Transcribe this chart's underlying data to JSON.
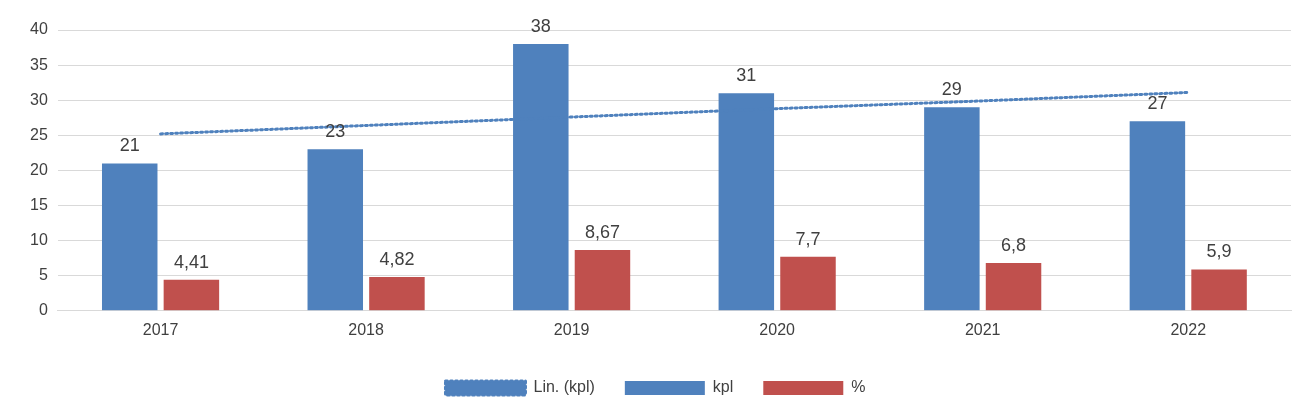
{
  "chart_data": {
    "type": "bar",
    "categories": [
      "2017",
      "2018",
      "2019",
      "2020",
      "2021",
      "2022"
    ],
    "series": [
      {
        "name": "kpl",
        "color": "#4f81bd",
        "values": [
          21,
          23,
          38,
          31,
          29,
          27
        ],
        "value_labels": [
          "21",
          "23",
          "38",
          "31",
          "29",
          "27"
        ]
      },
      {
        "name": "%",
        "color": "#c0504d",
        "values": [
          4.41,
          4.82,
          8.67,
          7.7,
          6.8,
          5.9
        ],
        "value_labels": [
          "4,41",
          "4,82",
          "8,67",
          "7,7",
          "6,8",
          "5,9"
        ]
      },
      {
        "name": "Lin. (kpl)",
        "type": "line",
        "color": "#4f81bd",
        "line_style": "dotted",
        "marker": "none",
        "values": [
          25.2,
          26.4,
          27.6,
          28.8,
          29.9,
          31.1
        ]
      }
    ],
    "ylim": [
      0,
      40
    ],
    "yticks": [
      0,
      5,
      10,
      15,
      20,
      25,
      30,
      35,
      40
    ],
    "grid": "y",
    "legend": "bottom"
  }
}
